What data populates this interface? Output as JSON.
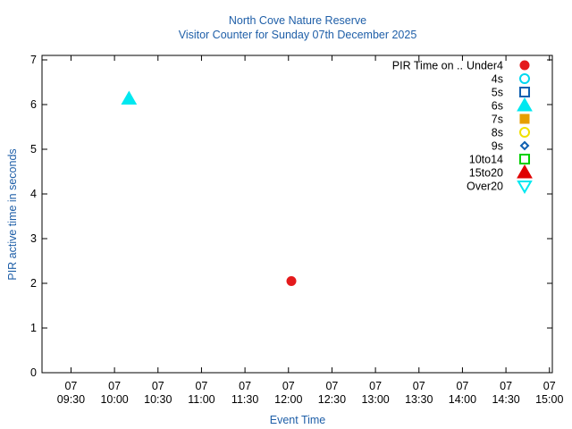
{
  "chart_data": {
    "type": "scatter",
    "title": "North Cove Nature Reserve",
    "subtitle": "Visitor Counter for Sunday 07th December 2025",
    "x_label": "Event Time",
    "y_label": "PIR active time in seconds",
    "legend_title": "PIR Time on ..",
    "legend": "top-right",
    "xlim": [
      550,
      902
    ],
    "ylim": [
      0,
      7.1
    ],
    "xticks": [
      {
        "value": 570,
        "label": "07\n09:30"
      },
      {
        "value": 600,
        "label": "07\n10:00"
      },
      {
        "value": 630,
        "label": "07\n10:30"
      },
      {
        "value": 660,
        "label": "07\n11:00"
      },
      {
        "value": 690,
        "label": "07\n11:30"
      },
      {
        "value": 720,
        "label": "07\n12:00"
      },
      {
        "value": 750,
        "label": "07\n12:30"
      },
      {
        "value": 780,
        "label": "07\n13:00"
      },
      {
        "value": 810,
        "label": "07\n13:30"
      },
      {
        "value": 840,
        "label": "07\n14:00"
      },
      {
        "value": 870,
        "label": "07\n14:30"
      },
      {
        "value": 900,
        "label": "07\n15:00"
      }
    ],
    "yticks": [
      0,
      1,
      2,
      3,
      4,
      5,
      6,
      7
    ],
    "series": [
      {
        "name": "Under4",
        "color": "#e41a1c",
        "marker": "circle",
        "filled": true,
        "x": [
          722
        ],
        "values": [
          2.05
        ]
      },
      {
        "name": "4s",
        "color": "#00d8f0",
        "marker": "circle",
        "filled": false,
        "x": [],
        "values": []
      },
      {
        "name": "5s",
        "color": "#1060b0",
        "marker": "square",
        "filled": false,
        "x": [],
        "values": []
      },
      {
        "name": "6s",
        "color": "#00e8f0",
        "marker": "triangle",
        "filled": true,
        "x": [
          610
        ],
        "values": [
          6.13
        ]
      },
      {
        "name": "7s",
        "color": "#e69f00",
        "marker": "square",
        "filled": true,
        "x": [],
        "values": []
      },
      {
        "name": "8s",
        "color": "#f0e000",
        "marker": "circle",
        "filled": false,
        "x": [],
        "values": []
      },
      {
        "name": "9s",
        "color": "#1060b0",
        "marker": "diamond",
        "filled": false,
        "x": [],
        "values": []
      },
      {
        "name": "10to14",
        "color": "#00d000",
        "marker": "square",
        "filled": false,
        "x": [],
        "values": []
      },
      {
        "name": "15to20",
        "color": "#e00000",
        "marker": "triangle",
        "filled": true,
        "x": [],
        "values": []
      },
      {
        "name": "Over20",
        "color": "#00e8f0",
        "marker": "triangle-down",
        "filled": false,
        "x": [],
        "values": []
      }
    ]
  }
}
